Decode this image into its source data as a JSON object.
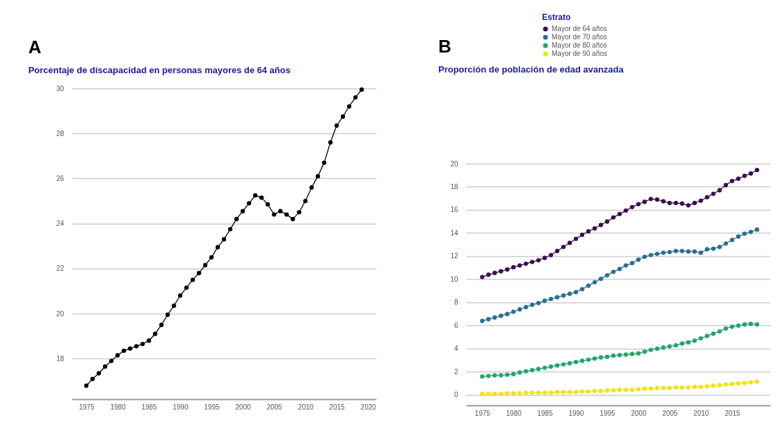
{
  "chart_data": [
    {
      "type": "line",
      "title": "Porcentaje de discapacidad en personas mayores de 64 años",
      "annotations": [
        "A"
      ],
      "x": [
        1975,
        1976,
        1977,
        1978,
        1979,
        1980,
        1981,
        1982,
        1983,
        1984,
        1985,
        1986,
        1987,
        1988,
        1989,
        1990,
        1991,
        1992,
        1993,
        1994,
        1995,
        1996,
        1997,
        1998,
        1999,
        2000,
        2001,
        2002,
        2003,
        2004,
        2005,
        2006,
        2007,
        2008,
        2009,
        2010,
        2011,
        2012,
        2013,
        2014,
        2015,
        2016,
        2017,
        2018,
        2019
      ],
      "series": [
        {
          "color": "#000000",
          "values": [
            16.8,
            17.1,
            17.35,
            17.65,
            17.9,
            18.15,
            18.35,
            18.45,
            18.55,
            18.65,
            18.8,
            19.1,
            19.5,
            19.95,
            20.35,
            20.8,
            21.15,
            21.5,
            21.8,
            22.15,
            22.5,
            22.95,
            23.3,
            23.75,
            24.2,
            24.55,
            24.9,
            25.25,
            25.15,
            24.85,
            24.4,
            24.55,
            24.4,
            24.2,
            24.5,
            25.0,
            25.6,
            26.1,
            26.7,
            27.6,
            28.35,
            28.75,
            29.2,
            29.6,
            29.95
          ]
        }
      ],
      "xlim": [
        1972.7,
        2021.3
      ],
      "xticks": [
        1975,
        1980,
        1985,
        1990,
        1995,
        2000,
        2005,
        2010,
        2015,
        2020
      ],
      "ylim": [
        16.2,
        30
      ],
      "yticks": [
        18,
        20,
        22,
        24,
        26,
        28,
        30
      ],
      "grid": "y",
      "marker": "circle",
      "line_style": "solid"
    },
    {
      "type": "line",
      "title": "Proporción de población de edad avanzada",
      "annotations": [
        "B"
      ],
      "legend_title": "Estrato",
      "legend": "top",
      "x": [
        1975,
        1976,
        1977,
        1978,
        1979,
        1980,
        1981,
        1982,
        1983,
        1984,
        1985,
        1986,
        1987,
        1988,
        1989,
        1990,
        1991,
        1992,
        1993,
        1994,
        1995,
        1996,
        1997,
        1998,
        1999,
        2000,
        2001,
        2002,
        2003,
        2004,
        2005,
        2006,
        2007,
        2008,
        2009,
        2010,
        2011,
        2012,
        2013,
        2014,
        2015,
        2016,
        2017,
        2018,
        2019
      ],
      "series": [
        {
          "name": "Mayor de 64 años",
          "color": "#3b0f4f",
          "values": [
            10.2,
            10.4,
            10.55,
            10.7,
            10.85,
            11.05,
            11.2,
            11.35,
            11.5,
            11.65,
            11.85,
            12.1,
            12.45,
            12.8,
            13.15,
            13.5,
            13.85,
            14.15,
            14.4,
            14.7,
            15.0,
            15.35,
            15.65,
            15.95,
            16.25,
            16.5,
            16.7,
            16.95,
            16.9,
            16.75,
            16.6,
            16.6,
            16.55,
            16.4,
            16.6,
            16.8,
            17.1,
            17.4,
            17.7,
            18.15,
            18.5,
            18.7,
            18.95,
            19.15,
            19.45
          ]
        },
        {
          "name": "Mayor de 70 años",
          "color": "#2c6e8f",
          "values": [
            6.4,
            6.55,
            6.7,
            6.85,
            7.0,
            7.2,
            7.4,
            7.6,
            7.8,
            7.95,
            8.15,
            8.3,
            8.45,
            8.6,
            8.75,
            8.9,
            9.15,
            9.45,
            9.75,
            10.05,
            10.35,
            10.65,
            10.9,
            11.2,
            11.4,
            11.7,
            11.95,
            12.1,
            12.2,
            12.3,
            12.35,
            12.45,
            12.45,
            12.4,
            12.4,
            12.3,
            12.6,
            12.65,
            12.8,
            13.1,
            13.4,
            13.7,
            13.95,
            14.1,
            14.3
          ]
        },
        {
          "name": "Mayor de 80 años",
          "color": "#21a66a",
          "values": [
            1.6,
            1.65,
            1.7,
            1.7,
            1.75,
            1.8,
            1.95,
            2.05,
            2.15,
            2.25,
            2.35,
            2.45,
            2.55,
            2.65,
            2.75,
            2.85,
            2.95,
            3.05,
            3.15,
            3.25,
            3.3,
            3.4,
            3.45,
            3.5,
            3.55,
            3.6,
            3.75,
            3.9,
            4.0,
            4.1,
            4.2,
            4.3,
            4.45,
            4.55,
            4.7,
            4.9,
            5.1,
            5.3,
            5.5,
            5.75,
            5.9,
            6.0,
            6.1,
            6.15,
            6.1
          ]
        },
        {
          "name": "Mayor de 90 años",
          "color": "#f2e21a",
          "values": [
            0.1,
            0.1,
            0.1,
            0.1,
            0.15,
            0.15,
            0.15,
            0.2,
            0.2,
            0.2,
            0.2,
            0.2,
            0.25,
            0.25,
            0.25,
            0.25,
            0.3,
            0.3,
            0.35,
            0.35,
            0.4,
            0.4,
            0.45,
            0.45,
            0.45,
            0.5,
            0.55,
            0.55,
            0.6,
            0.6,
            0.6,
            0.65,
            0.65,
            0.65,
            0.7,
            0.7,
            0.75,
            0.8,
            0.85,
            0.9,
            0.95,
            1.0,
            1.05,
            1.1,
            1.15
          ]
        }
      ],
      "xlim": [
        1972.4,
        2021.1
      ],
      "xticks": [
        1975,
        1980,
        1985,
        1990,
        1995,
        2000,
        2005,
        2010,
        2015
      ],
      "ylim": [
        -0.9,
        20
      ],
      "yticks": [
        0,
        2,
        4,
        6,
        8,
        10,
        12,
        14,
        16,
        18,
        20
      ],
      "grid": "y",
      "marker": "circle",
      "line_style": "solid"
    }
  ]
}
